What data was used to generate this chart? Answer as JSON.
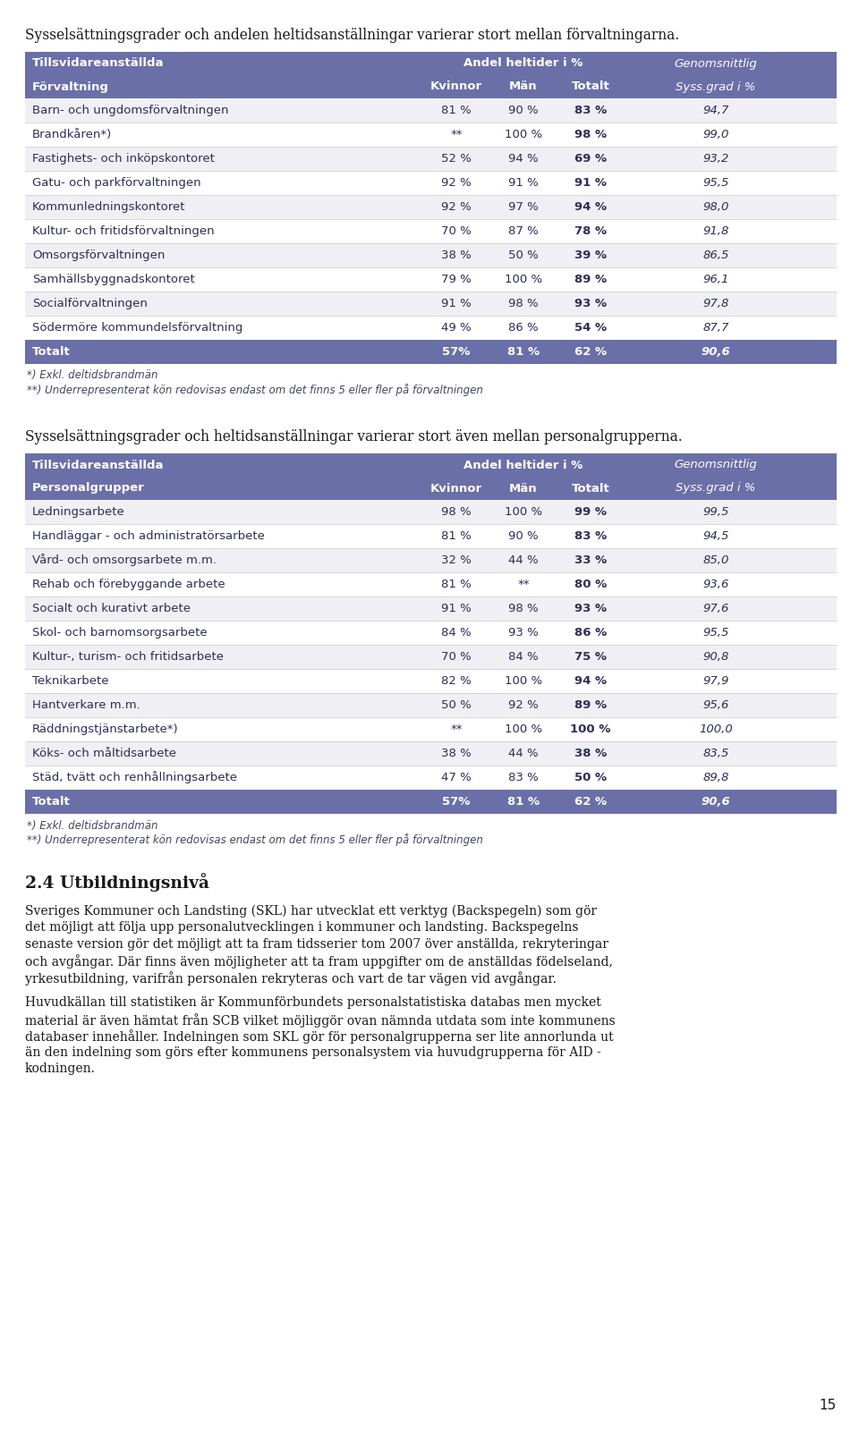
{
  "page_title_1": "Sysselsättningsgrader och andelen heltidsanställningar varierar stort mellan förvaltningarna.",
  "page_title_2": "Sysselsättningsgrader och heltidsanställningar varierar stort även mellan personalgrupperna.",
  "section_heading": "2.4 Utbildningsnivå",
  "page_num": "15",
  "header_bg": "#6b6fa8",
  "header_text_color": "#ffffff",
  "total_row_bg": "#6b6fa8",
  "table1_header1": "Tillsvidareanställda",
  "table1_header2": "Andel heltider i %",
  "table1_header3": "Genomsnittlig",
  "table1_subheader1": "Förvaltning",
  "table1_subheader2": "Kvinnor",
  "table1_subheader3": "Män",
  "table1_subheader4": "Totalt",
  "table1_subheader5": "Syss.grad i %",
  "table1_rows": [
    [
      "Barn- och ungdomsförvaltningen",
      "81 %",
      "90 %",
      "83 %",
      "94,7"
    ],
    [
      "Brandkåren*)",
      "**",
      "100 %",
      "98 %",
      "99,0"
    ],
    [
      "Fastighets- och inköpskontoret",
      "52 %",
      "94 %",
      "69 %",
      "93,2"
    ],
    [
      "Gatu- och parkförvaltningen",
      "92 %",
      "91 %",
      "91 %",
      "95,5"
    ],
    [
      "Kommunledningskontoret",
      "92 %",
      "97 %",
      "94 %",
      "98,0"
    ],
    [
      "Kultur- och fritidsförvaltningen",
      "70 %",
      "87 %",
      "78 %",
      "91,8"
    ],
    [
      "Omsorgsförvaltningen",
      "38 %",
      "50 %",
      "39 %",
      "86,5"
    ],
    [
      "Samhällsbyggnadskontoret",
      "79 %",
      "100 %",
      "89 %",
      "96,1"
    ],
    [
      "Socialförvaltningen",
      "91 %",
      "98 %",
      "93 %",
      "97,8"
    ],
    [
      "Södermöre kommundelsförvaltning",
      "49 %",
      "86 %",
      "54 %",
      "87,7"
    ]
  ],
  "table1_total": [
    "Totalt",
    "57%",
    "81 %",
    "62 %",
    "90,6"
  ],
  "table1_footnote1": "*) Exkl. deltidsbrandmän",
  "table1_footnote2": "**) Underrepresenterat kön redovisas endast om det finns 5 eller fler på förvaltningen",
  "table2_header1": "Tillsvidareanställda",
  "table2_header2": "Andel heltider i %",
  "table2_header3": "Genomsnittlig",
  "table2_subheader1": "Personalgrupper",
  "table2_subheader2": "Kvinnor",
  "table2_subheader3": "Män",
  "table2_subheader4": "Totalt",
  "table2_subheader5": "Syss.grad i %",
  "table2_rows": [
    [
      "Ledningsarbete",
      "98 %",
      "100 %",
      "99 %",
      "99,5"
    ],
    [
      "Handläggar - och administratörsarbete",
      "81 %",
      "90 %",
      "83 %",
      "94,5"
    ],
    [
      "Vård- och omsorgsarbete m.m.",
      "32 %",
      "44 %",
      "33 %",
      "85,0"
    ],
    [
      "Rehab och förebyggande arbete",
      "81 %",
      "**",
      "80 %",
      "93,6"
    ],
    [
      "Socialt och kurativt arbete",
      "91 %",
      "98 %",
      "93 %",
      "97,6"
    ],
    [
      "Skol- och barnomsorgsarbete",
      "84 %",
      "93 %",
      "86 %",
      "95,5"
    ],
    [
      "Kultur-, turism- och fritidsarbete",
      "70 %",
      "84 %",
      "75 %",
      "90,8"
    ],
    [
      "Teknikarbete",
      "82 %",
      "100 %",
      "94 %",
      "97,9"
    ],
    [
      "Hantverkare m.m.",
      "50 %",
      "92 %",
      "89 %",
      "95,6"
    ],
    [
      "Räddningstjänstarbete*)",
      "**",
      "100 %",
      "100 %",
      "100,0"
    ],
    [
      "Köks- och måltidsarbete",
      "38 %",
      "44 %",
      "38 %",
      "83,5"
    ],
    [
      "Städ, tvätt och renhållningsarbete",
      "47 %",
      "83 %",
      "50 %",
      "89,8"
    ]
  ],
  "table2_total": [
    "Totalt",
    "57%",
    "81 %",
    "62 %",
    "90,6"
  ],
  "table2_footnote1": "*) Exkl. deltidsbrandmän",
  "table2_footnote2": "**) Underrepresenterat kön redovisas endast om det finns 5 eller fler på förvaltningen",
  "body_lines_1": [
    "Sveriges Kommuner och Landsting (SKL) har utvecklat ett verktyg (Backspegeln) som gör",
    "det möjligt att följa upp personalutvecklingen i kommuner och landsting. Backspegelns",
    "senaste version gör det möjligt att ta fram tidsserier tom 2007 över anställda, rekryteringar",
    "och avgångar. Där finns även möjligheter att ta fram uppgifter om de anställdas födelseland,",
    "yrkesutbildning, varifrån personalen rekryteras och vart de tar vägen vid avgångar."
  ],
  "body_lines_2": [
    "Huvudkällan till statistiken är Kommunförbundets personalstatistiska databas men mycket",
    "material är även hämtat från SCB vilket möjliggör ovan nämnda utdata som inte kommunens",
    "databaser innehåller. Indelningen som SKL gör för personalgrupperna ser lite annorlunda ut",
    "än den indelning som görs efter kommunens personalsystem via huvudgrupperna för AID -",
    "kodningen."
  ]
}
